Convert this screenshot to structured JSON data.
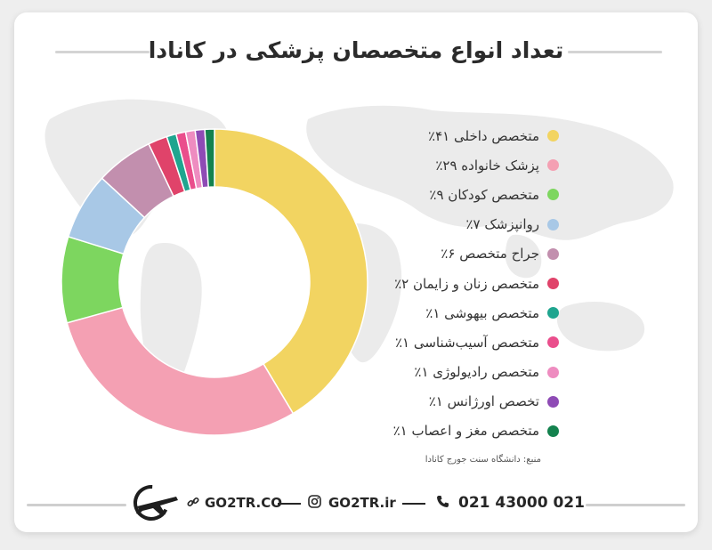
{
  "title": "تعداد انواع متخصصان پزشکی در کانادا",
  "chart_data": {
    "type": "pie",
    "variant": "donut",
    "title": "تعداد انواع متخصصان پزشکی در کانادا",
    "legend_position": "right",
    "slices": [
      {
        "label": "متخصص داخلی ۴۱٪",
        "value": 41,
        "color": "#f2d461"
      },
      {
        "label": "پزشک خانواده ۲۹٪",
        "value": 29,
        "color": "#f4a0b3"
      },
      {
        "label": "متخصص کودکان ۹٪",
        "value": 9,
        "color": "#7dd65f"
      },
      {
        "label": "روانپزشک ۷٪",
        "value": 7,
        "color": "#a8c8e6"
      },
      {
        "label": "جراح متخصص ۶٪",
        "value": 6,
        "color": "#c28fae"
      },
      {
        "label": "متخصص زنان و زایمان ۲٪",
        "value": 2,
        "color": "#e0436a"
      },
      {
        "label": "متخصص بیهوشی ۱٪",
        "value": 1,
        "color": "#1fa58f"
      },
      {
        "label": "متخصص آسیب‌شناسی ۱٪",
        "value": 1,
        "color": "#ea4e8c"
      },
      {
        "label": "متخصص رادیولوژی ۱٪",
        "value": 1,
        "color": "#ee8cc0"
      },
      {
        "label": "تخصص اورژانس ۱٪",
        "value": 1,
        "color": "#8e4bb5"
      },
      {
        "label": "متخصص مغز و اعصاب ۱٪",
        "value": 1,
        "color": "#14824e"
      }
    ]
  },
  "source": "منبع: دانشگاه سنت جورج کانادا",
  "footer": {
    "website": "GO2TR.CO",
    "instagram": "GO2TR.ir",
    "phone": "021 43000 021",
    "icons": {
      "link": "link-icon",
      "instagram": "instagram-icon",
      "phone": "phone-icon",
      "logo": "airplane-logo-icon"
    }
  },
  "colors": {
    "title_line": "#d4d4d4",
    "text": "#2b2b2b",
    "map": "#e8e8e8"
  }
}
